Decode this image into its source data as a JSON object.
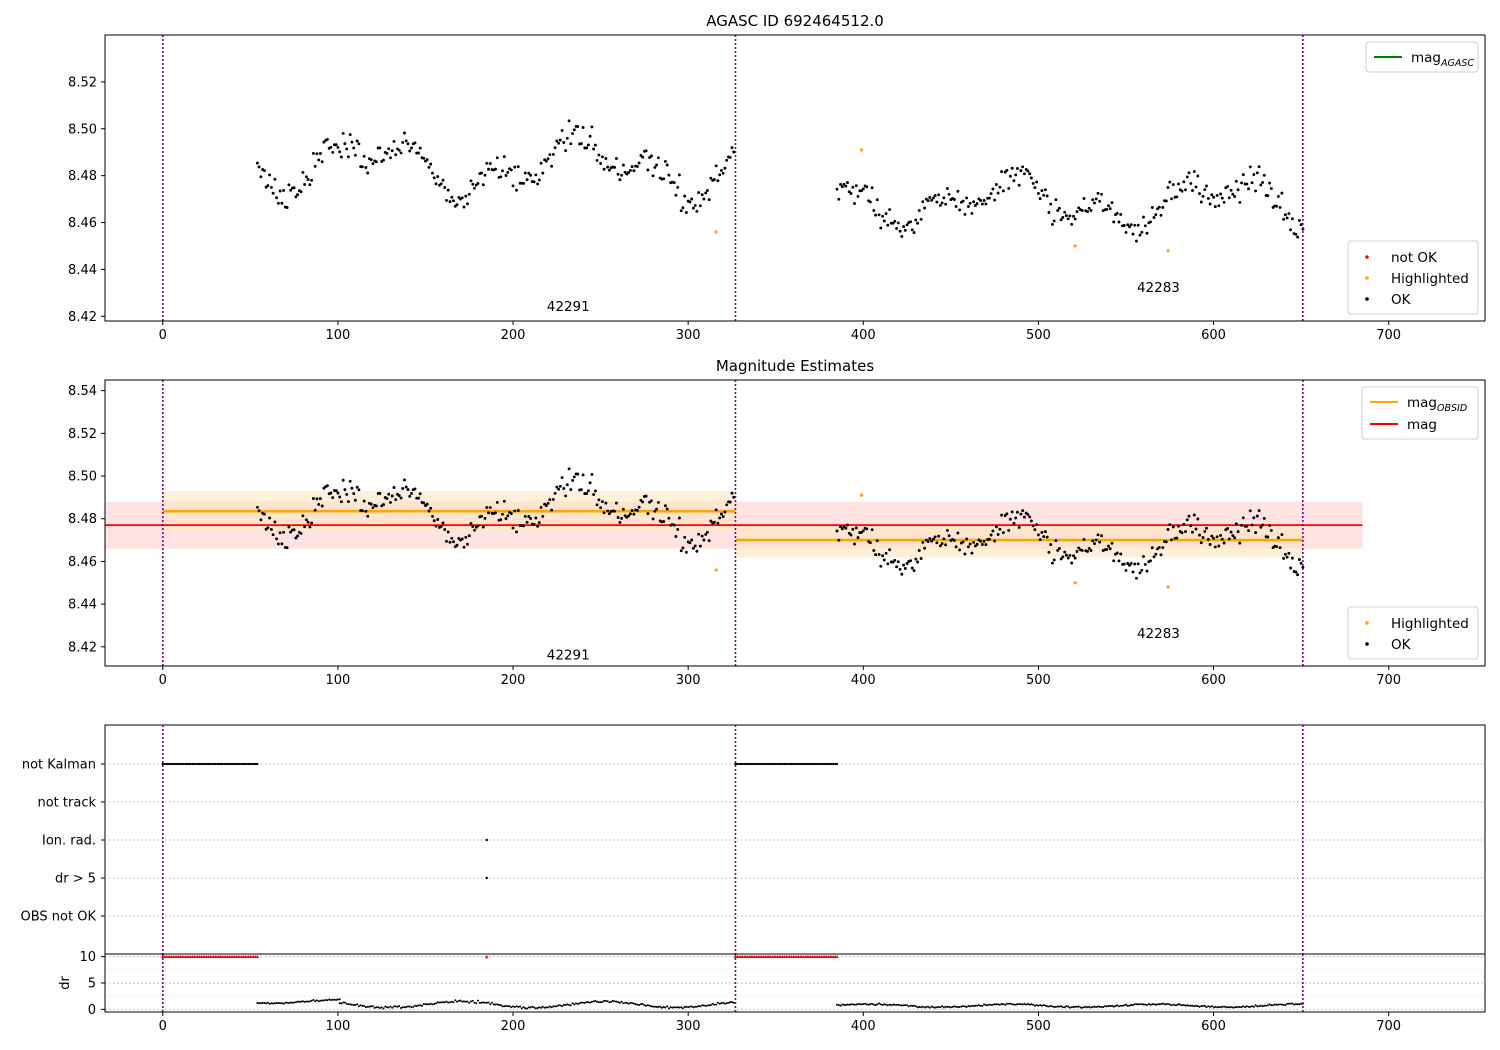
{
  "figure": {
    "title": "AGASC ID 692464512.0"
  },
  "colors": {
    "ok": "#000000",
    "highlighted": "#ffa500",
    "not_ok": "#ff0000",
    "mag_agasc": "#008000",
    "mag_obsid": "#ffa500",
    "mag": "#ff0000",
    "obs_boundary": "#800080",
    "mag_band": "#ffcccc",
    "obsid_band": "#ffe6bf"
  },
  "chart_data": [
    {
      "type": "scatter",
      "title": "",
      "xlim": [
        -33,
        755
      ],
      "ylim": [
        8.418,
        8.54
      ],
      "xticks": [
        0,
        100,
        200,
        300,
        400,
        500,
        600,
        700
      ],
      "yticks": [
        8.42,
        8.44,
        8.46,
        8.48,
        8.5,
        8.52
      ],
      "xlabel": "",
      "ylabel": "",
      "obs_boundaries": [
        0,
        327,
        651
      ],
      "obsid_labels": [
        {
          "obsid": "42291",
          "x": 163,
          "y": 8.424
        },
        {
          "obsid": "42283",
          "x": 500,
          "y": 8.432
        }
      ],
      "legend_lines": [
        {
          "label": "mag",
          "subscript": "AGASC",
          "color_key": "mag_agasc"
        }
      ],
      "legend_points": [
        {
          "label": "not OK",
          "color_key": "not_ok"
        },
        {
          "label": "Highlighted",
          "color_key": "highlighted"
        },
        {
          "label": "OK",
          "color_key": "ok"
        }
      ],
      "segments": [
        {
          "x0": 54,
          "x1": 326,
          "mean": 8.484,
          "amp": 0.011,
          "noise": 0.004,
          "gaps": [
            [
              0,
              54
            ]
          ]
        },
        {
          "x0": 385,
          "x1": 651,
          "mean": 8.469,
          "amp": 0.009,
          "noise": 0.004,
          "gaps": [
            [
              327,
              385
            ]
          ]
        }
      ],
      "highlighted_points": [
        {
          "x": 316,
          "y": 8.456
        },
        {
          "x": 399,
          "y": 8.491
        },
        {
          "x": 521,
          "y": 8.45
        },
        {
          "x": 574,
          "y": 8.448
        }
      ]
    },
    {
      "type": "scatter",
      "title": "Magnitude Estimates",
      "xlim": [
        -33,
        755
      ],
      "ylim": [
        8.411,
        8.545
      ],
      "xticks": [
        0,
        100,
        200,
        300,
        400,
        500,
        600,
        700
      ],
      "yticks": [
        8.42,
        8.44,
        8.46,
        8.48,
        8.5,
        8.52,
        8.54
      ],
      "xlabel": "",
      "ylabel": "",
      "obs_boundaries": [
        0,
        327,
        651
      ],
      "obsid_labels": [
        {
          "obsid": "42291",
          "x": 163,
          "y": 8.416
        },
        {
          "obsid": "42283",
          "x": 500,
          "y": 8.426
        }
      ],
      "mag": {
        "value": 8.477,
        "band": [
          8.466,
          8.488
        ],
        "x_range": [
          -33,
          685
        ]
      },
      "mag_obsid": [
        {
          "x0": 0,
          "x1": 327,
          "value": 8.4835,
          "band": [
            8.474,
            8.493
          ]
        },
        {
          "x0": 327,
          "x1": 651,
          "value": 8.47,
          "band": [
            8.462,
            8.478
          ]
        }
      ],
      "legend_lines": [
        {
          "label": "mag",
          "subscript": "OBSID",
          "color_key": "mag_obsid"
        },
        {
          "label": "mag",
          "subscript": "",
          "color_key": "mag"
        }
      ],
      "legend_points": [
        {
          "label": "Highlighted",
          "color_key": "highlighted"
        },
        {
          "label": "OK",
          "color_key": "ok"
        }
      ],
      "segments": [
        {
          "x0": 54,
          "x1": 326,
          "mean": 8.484,
          "amp": 0.011,
          "noise": 0.004,
          "gaps": [
            [
              0,
              54
            ]
          ]
        },
        {
          "x0": 385,
          "x1": 651,
          "mean": 8.469,
          "amp": 0.009,
          "noise": 0.004,
          "gaps": [
            [
              327,
              385
            ]
          ]
        }
      ],
      "highlighted_points": [
        {
          "x": 316,
          "y": 8.456
        },
        {
          "x": 399,
          "y": 8.491
        },
        {
          "x": 521,
          "y": 8.45
        },
        {
          "x": 574,
          "y": 8.448
        }
      ]
    },
    {
      "type": "scatter",
      "title": "",
      "xlim": [
        -33,
        755
      ],
      "flag_labels": [
        "not Kalman",
        "not track",
        "Ion. rad.",
        "dr > 5",
        "OBS not OK"
      ],
      "flags": {
        "not Kalman": {
          "ranges": [
            [
              0,
              54
            ],
            [
              327,
              385
            ]
          ],
          "points": []
        },
        "not track": {
          "ranges": [],
          "points": []
        },
        "Ion. rad.": {
          "ranges": [],
          "points": [
            185
          ]
        },
        "dr > 5": {
          "ranges": [],
          "points": [
            185
          ]
        },
        "OBS not OK": {
          "ranges": [],
          "points": []
        }
      },
      "obs_boundaries": [
        0,
        327,
        651
      ]
    },
    {
      "type": "scatter",
      "title": "",
      "xlim": [
        -33,
        755
      ],
      "ylim": [
        -0.5,
        10.5
      ],
      "xticks": [
        0,
        100,
        200,
        300,
        400,
        500,
        600,
        700
      ],
      "yticks": [
        0,
        5,
        10
      ],
      "ylabel": "dr",
      "obs_boundaries": [
        0,
        327,
        651
      ],
      "clipped_ranges": [
        [
          0,
          54
        ],
        [
          327,
          385
        ]
      ],
      "clipped_points": [
        185
      ],
      "clipped_value": 10,
      "dr_segments": [
        {
          "x0": 54,
          "x1": 101,
          "base": 1.5,
          "amp": 0.35,
          "noise": 0.1
        },
        {
          "x0": 101,
          "x1": 326,
          "base": 0.9,
          "amp": 0.6,
          "noise": 0.15
        },
        {
          "x0": 385,
          "x1": 651,
          "base": 0.7,
          "amp": 0.3,
          "noise": 0.1
        }
      ]
    }
  ]
}
